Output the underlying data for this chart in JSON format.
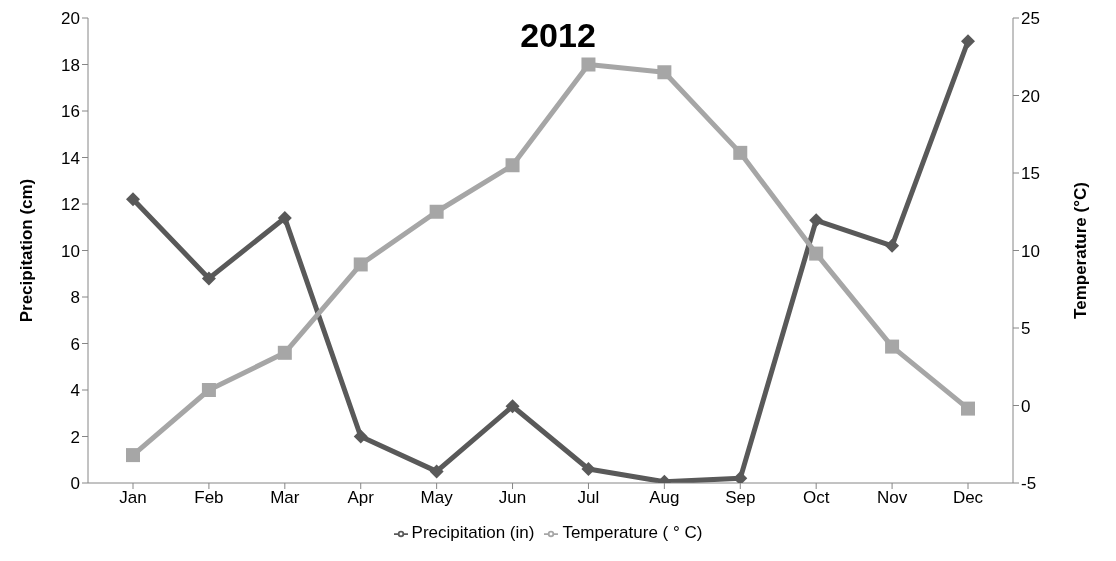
{
  "chart_data": {
    "type": "line",
    "title": "2012",
    "ylabel": "Precipitation (cm)",
    "y2label": "Temperature (°C)",
    "categories": [
      "Jan",
      "Feb",
      "Mar",
      "Apr",
      "May",
      "Jun",
      "Jul",
      "Aug",
      "Sep",
      "Oct",
      "Nov",
      "Dec"
    ],
    "series": [
      {
        "name": "Precipitation (in)",
        "color": "#595959",
        "marker": "diamond",
        "values": [
          12.2,
          8.8,
          11.4,
          2.0,
          0.5,
          3.3,
          0.6,
          0.05,
          0.2,
          11.3,
          10.2,
          19.0
        ]
      },
      {
        "name": "Temperature ( ° C)",
        "color": "#a6a6a6",
        "marker": "square",
        "axis": "y2",
        "values": [
          -3.2,
          1.0,
          3.4,
          9.1,
          12.5,
          15.5,
          22.0,
          21.5,
          16.3,
          9.8,
          3.8,
          -0.2
        ]
      }
    ],
    "ylim": [
      0,
      20
    ],
    "yticks": [
      0,
      2,
      4,
      6,
      8,
      10,
      12,
      14,
      16,
      18,
      20
    ],
    "y2lim": [
      -5,
      25
    ],
    "y2ticks": [
      -5,
      0,
      5,
      10,
      15,
      20,
      25
    ],
    "grid": false,
    "legend": "bottom",
    "line_style": "solid"
  }
}
